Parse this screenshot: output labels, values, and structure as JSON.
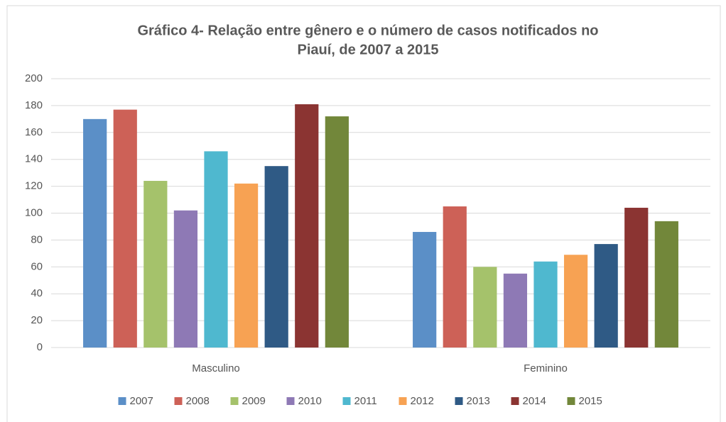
{
  "chart_data": {
    "type": "bar",
    "title": [
      "Gráfico 4- Relação entre gênero e o número de casos notificados no",
      "Piauí, de 2007 a 2015"
    ],
    "categories": [
      "Masculino",
      "Feminino"
    ],
    "series": [
      {
        "name": "2007",
        "color": "#5b8fc7",
        "values": [
          170,
          86
        ]
      },
      {
        "name": "2008",
        "color": "#cd6157",
        "values": [
          177,
          105
        ]
      },
      {
        "name": "2009",
        "color": "#a5c26b",
        "values": [
          124,
          60
        ]
      },
      {
        "name": "2010",
        "color": "#8e79b5",
        "values": [
          102,
          55
        ]
      },
      {
        "name": "2011",
        "color": "#4fb8cf",
        "values": [
          146,
          64
        ]
      },
      {
        "name": "2012",
        "color": "#f7a253",
        "values": [
          122,
          69
        ]
      },
      {
        "name": "2013",
        "color": "#2f5a85",
        "values": [
          135,
          77
        ]
      },
      {
        "name": "2014",
        "color": "#8b3432",
        "values": [
          181,
          104
        ]
      },
      {
        "name": "2015",
        "color": "#72873a",
        "values": [
          172,
          94
        ]
      }
    ],
    "ylim": [
      0,
      200
    ],
    "yticks": [
      0,
      20,
      40,
      60,
      80,
      100,
      120,
      140,
      160,
      180,
      200
    ],
    "grid": true,
    "legend": "bottom"
  }
}
